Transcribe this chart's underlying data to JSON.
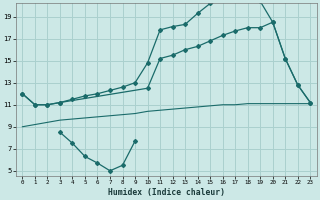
{
  "xlabel": "Humidex (Indice chaleur)",
  "bg_color": "#cce8e6",
  "grid_color": "#aad0ce",
  "line_color": "#1a6b6a",
  "xlim": [
    -0.5,
    23.5
  ],
  "ylim": [
    4.5,
    20.2
  ],
  "xticks": [
    0,
    1,
    2,
    3,
    4,
    5,
    6,
    7,
    8,
    9,
    10,
    11,
    12,
    13,
    14,
    15,
    16,
    17,
    18,
    19,
    20,
    21,
    22,
    23
  ],
  "yticks": [
    5,
    7,
    9,
    11,
    13,
    15,
    17,
    19
  ],
  "line_min_x": [
    0,
    1,
    2,
    3,
    4,
    5,
    6,
    7,
    8,
    9,
    10,
    11,
    12,
    13,
    14,
    15,
    16,
    17,
    18,
    19,
    20,
    21,
    22,
    23
  ],
  "line_min_y": [
    9.0,
    9.2,
    9.4,
    9.6,
    9.7,
    9.8,
    9.9,
    10.0,
    10.1,
    10.2,
    10.4,
    10.5,
    10.6,
    10.7,
    10.8,
    10.9,
    11.0,
    11.0,
    11.1,
    11.1,
    11.1,
    11.1,
    11.1,
    11.1
  ],
  "line_mid_x": [
    0,
    1,
    2,
    3,
    10,
    11,
    12,
    13,
    14,
    15,
    16,
    17,
    18,
    19,
    20,
    21,
    22,
    23
  ],
  "line_mid_y": [
    12.0,
    11.0,
    11.0,
    11.2,
    12.5,
    15.2,
    15.5,
    16.0,
    16.3,
    16.8,
    17.3,
    17.7,
    18.0,
    18.0,
    18.5,
    15.2,
    12.8,
    11.2
  ],
  "line_top_x": [
    0,
    1,
    2,
    3,
    4,
    5,
    6,
    7,
    8,
    9,
    10,
    11,
    12,
    13,
    14,
    15,
    16,
    17,
    18,
    19,
    20,
    21,
    22,
    23
  ],
  "line_top_y": [
    12.0,
    11.0,
    11.0,
    11.2,
    11.5,
    11.8,
    12.0,
    12.3,
    12.6,
    13.0,
    14.8,
    17.8,
    18.1,
    18.3,
    19.3,
    20.2,
    20.5,
    20.5,
    20.5,
    20.4,
    18.5,
    15.2,
    12.8,
    11.2
  ],
  "line_dip_x": [
    3,
    4,
    5,
    6,
    7,
    8,
    9
  ],
  "line_dip_y": [
    8.5,
    7.5,
    6.3,
    5.7,
    5.0,
    5.5,
    7.7
  ]
}
